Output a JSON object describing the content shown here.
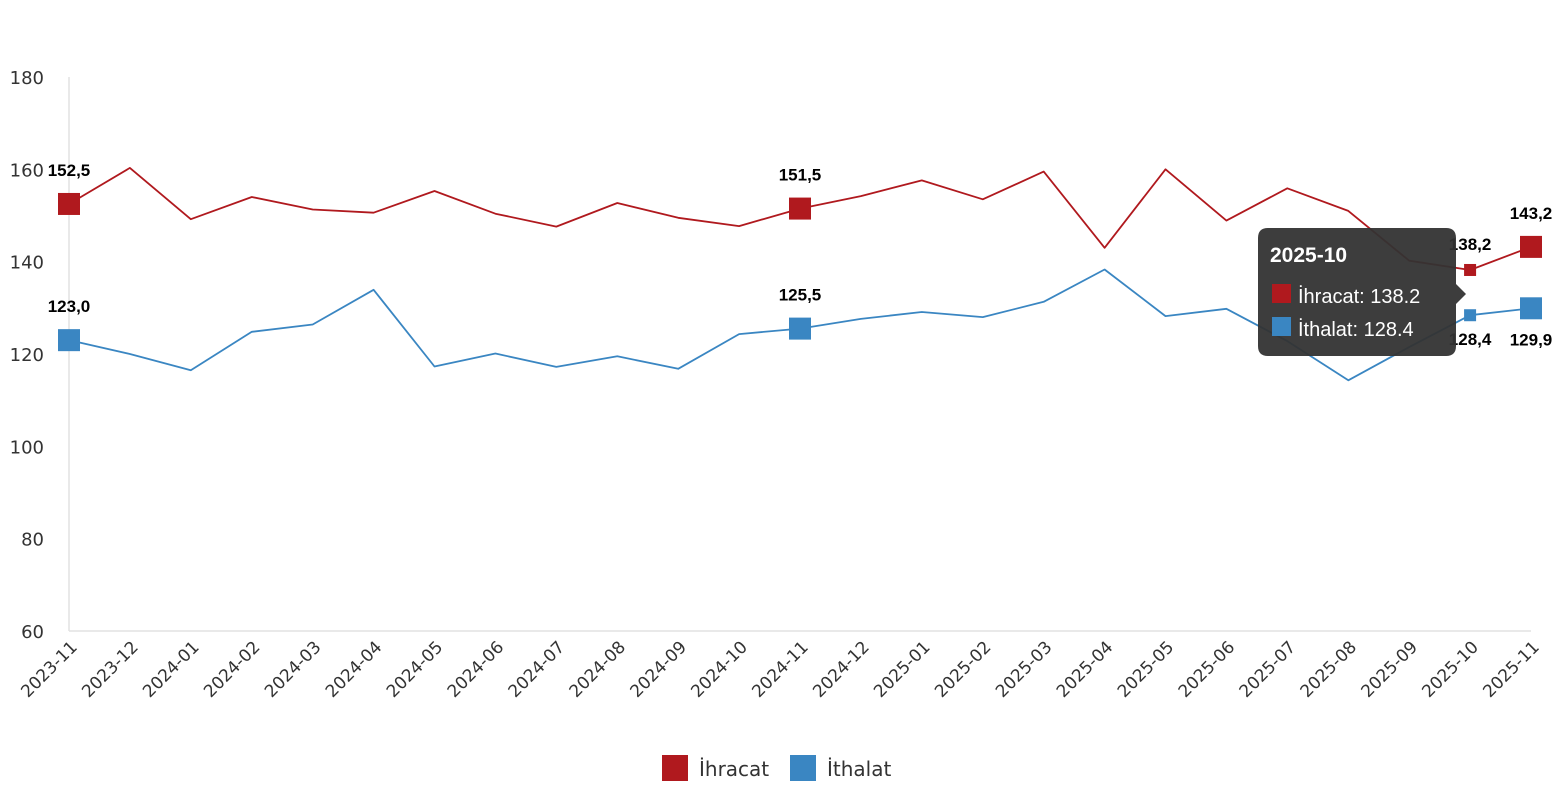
{
  "chart_data": {
    "type": "line",
    "title": "",
    "xlabel": "",
    "ylabel": "",
    "ylim": [
      60,
      180
    ],
    "y_ticks": [
      60,
      80,
      100,
      120,
      140,
      160,
      180
    ],
    "categories": [
      "2023-11",
      "2023-12",
      "2024-01",
      "2024-02",
      "2024-03",
      "2024-04",
      "2024-05",
      "2024-06",
      "2024-07",
      "2024-08",
      "2024-09",
      "2024-10",
      "2024-11",
      "2024-12",
      "2025-01",
      "2025-02",
      "2025-03",
      "2025-04",
      "2025-05",
      "2025-06",
      "2025-07",
      "2025-08",
      "2025-09",
      "2025-10",
      "2025-11"
    ],
    "series": [
      {
        "name": "İhracat",
        "color": "#b0191e",
        "values": [
          152.5,
          160.3,
          149.2,
          154.0,
          151.3,
          150.6,
          155.3,
          150.4,
          147.6,
          152.7,
          149.5,
          147.7,
          151.5,
          154.2,
          157.6,
          153.5,
          159.5,
          143.0,
          160.0,
          148.9,
          155.9,
          151.0,
          140.2,
          138.2,
          143.2
        ],
        "labels": [
          {
            "index": 0,
            "text": "152,5"
          },
          {
            "index": 12,
            "text": "151,5"
          },
          {
            "index": 23,
            "text": "138,2"
          },
          {
            "index": 24,
            "text": "143,2"
          }
        ]
      },
      {
        "name": "İthalat",
        "color": "#3a86c2",
        "values": [
          123.0,
          120.0,
          116.5,
          124.8,
          126.4,
          133.9,
          117.3,
          120.1,
          117.2,
          119.5,
          116.8,
          124.3,
          125.5,
          127.6,
          129.1,
          128.0,
          131.3,
          138.3,
          128.2,
          129.8,
          122.8,
          114.3,
          121.5,
          128.4,
          129.9
        ],
        "labels": [
          {
            "index": 0,
            "text": "123,0"
          },
          {
            "index": 12,
            "text": "125,5"
          },
          {
            "index": 23,
            "text": "128,4"
          },
          {
            "index": 24,
            "text": "129,9"
          }
        ]
      }
    ],
    "legend": {
      "position": "bottom-center"
    },
    "grid": false,
    "tooltip": {
      "index": 23,
      "title": "2025-10",
      "lines": [
        "İhracat: 138.2",
        "İthalat: 128.4"
      ]
    }
  }
}
